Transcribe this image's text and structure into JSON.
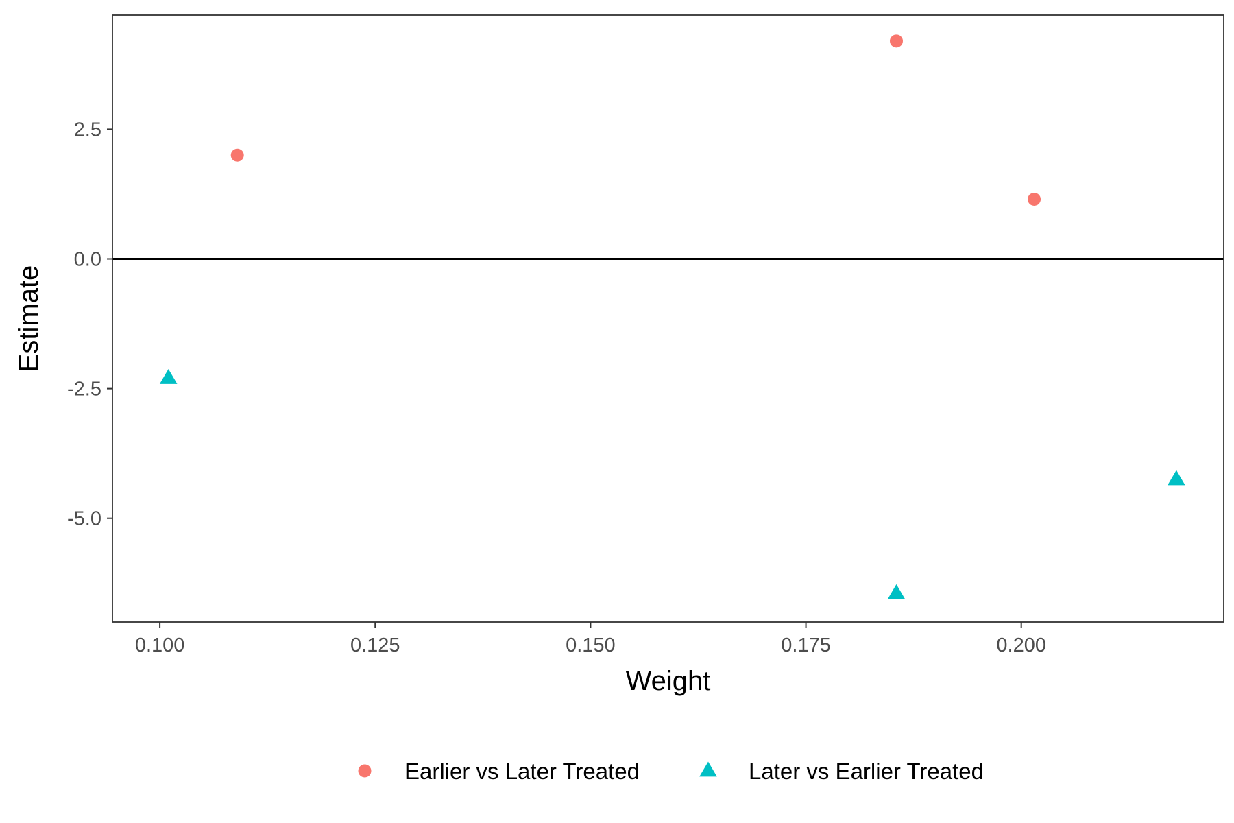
{
  "chart_data": {
    "type": "scatter",
    "title": "",
    "xlabel": "Weight",
    "ylabel": "Estimate",
    "xlim": [
      0.0945,
      0.2235
    ],
    "ylim": [
      -7.0,
      4.7
    ],
    "x_ticks": [
      0.1,
      0.125,
      0.15,
      0.175,
      0.2
    ],
    "x_tick_labels": [
      "0.100",
      "0.125",
      "0.150",
      "0.175",
      "0.200"
    ],
    "y_ticks": [
      -5.0,
      -2.5,
      0.0,
      2.5
    ],
    "y_tick_labels": [
      "-5.0",
      "-2.5",
      "0.0",
      "2.5"
    ],
    "reference_line": {
      "y": 0.0
    },
    "grid": false,
    "legend_position": "bottom",
    "series": [
      {
        "name": "Earlier vs Later Treated",
        "marker": "circle",
        "color": "#F8766D",
        "points": [
          {
            "x": 0.109,
            "y": 2.0
          },
          {
            "x": 0.1855,
            "y": 4.2
          },
          {
            "x": 0.2015,
            "y": 1.15
          }
        ]
      },
      {
        "name": "Later vs Earlier Treated",
        "marker": "triangle",
        "color": "#00BFC4",
        "points": [
          {
            "x": 0.101,
            "y": -2.3
          },
          {
            "x": 0.1855,
            "y": -6.45
          },
          {
            "x": 0.218,
            "y": -4.25
          }
        ]
      }
    ]
  }
}
